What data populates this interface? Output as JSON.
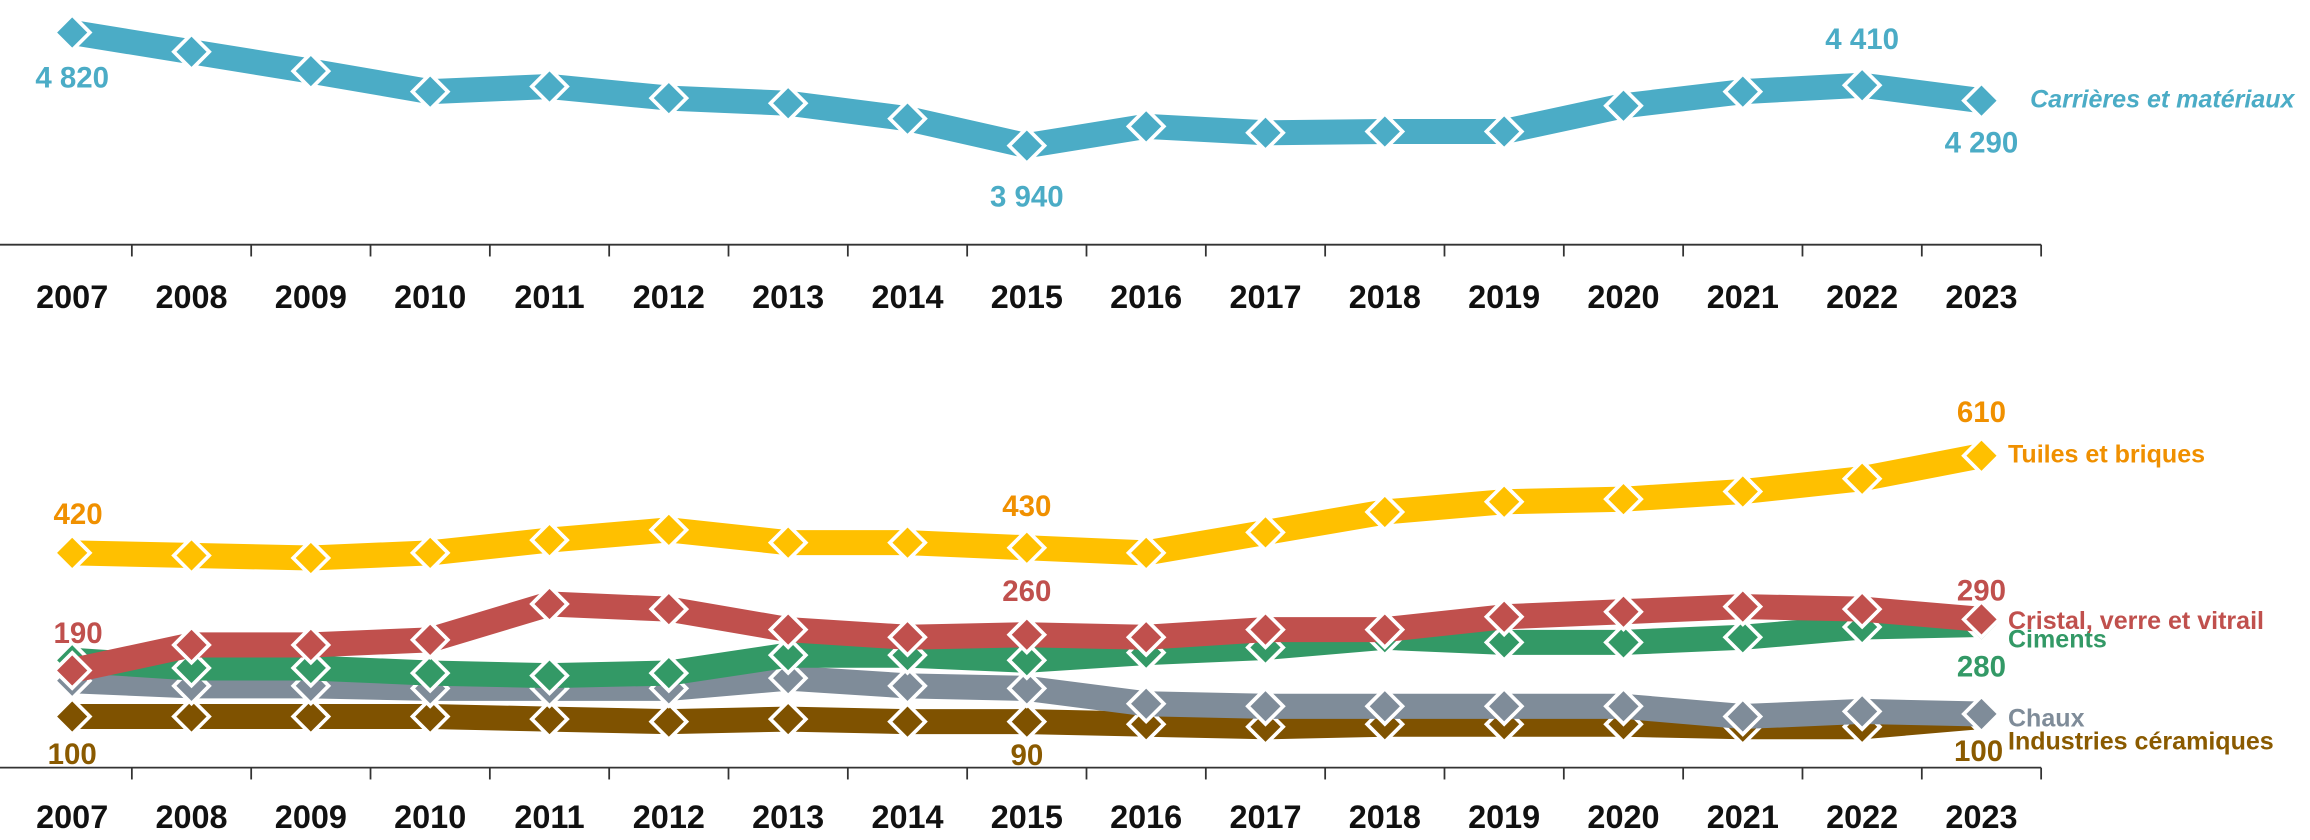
{
  "chart_data": [
    {
      "type": "line",
      "categories": [
        "2007",
        "2008",
        "2009",
        "2010",
        "2011",
        "2012",
        "2013",
        "2014",
        "2015",
        "2016",
        "2017",
        "2018",
        "2019",
        "2020",
        "2021",
        "2022",
        "2023"
      ],
      "ylim": [
        3800,
        4900
      ],
      "series": [
        {
          "name": "Carrières et matériaux",
          "color": "#4bacc6",
          "values": [
            4820,
            4670,
            4520,
            4360,
            4400,
            4310,
            4270,
            4150,
            3940,
            4090,
            4040,
            4050,
            4050,
            4250,
            4360,
            4410,
            4290
          ],
          "value_labels": [
            "4 820",
            null,
            null,
            null,
            null,
            null,
            null,
            null,
            "3 940",
            null,
            null,
            null,
            null,
            null,
            null,
            "4 410",
            "4 290"
          ]
        }
      ]
    },
    {
      "type": "line",
      "categories": [
        "2007",
        "2008",
        "2009",
        "2010",
        "2011",
        "2012",
        "2013",
        "2014",
        "2015",
        "2016",
        "2017",
        "2018",
        "2019",
        "2020",
        "2021",
        "2022",
        "2023"
      ],
      "ylim": [
        0,
        700
      ],
      "series": [
        {
          "name": "Industries céramiques",
          "color": "#7f5200",
          "values": [
            100,
            100,
            100,
            100,
            95,
            90,
            95,
            90,
            90,
            85,
            80,
            85,
            85,
            85,
            80,
            80,
            100
          ],
          "value_labels": [
            "100",
            null,
            null,
            null,
            null,
            null,
            null,
            null,
            "90",
            null,
            null,
            null,
            null,
            null,
            null,
            null,
            "100"
          ]
        },
        {
          "name": "Chaux",
          "color": "#7f8c99",
          "values": [
            170,
            160,
            160,
            155,
            155,
            155,
            175,
            160,
            155,
            125,
            120,
            120,
            120,
            120,
            100,
            110,
            105
          ]
        },
        {
          "name": "Ciments",
          "color": "#339966",
          "values": [
            210,
            195,
            195,
            185,
            180,
            185,
            220,
            220,
            210,
            225,
            235,
            255,
            245,
            245,
            255,
            275,
            280
          ],
          "value_labels": [
            null,
            null,
            null,
            null,
            null,
            null,
            null,
            null,
            null,
            null,
            null,
            null,
            null,
            null,
            null,
            null,
            "280"
          ]
        },
        {
          "name": "Cristal, verre et vitrail",
          "color": "#c0504d",
          "values": [
            190,
            240,
            240,
            250,
            320,
            310,
            270,
            255,
            260,
            255,
            270,
            270,
            295,
            305,
            315,
            310,
            290
          ],
          "value_labels": [
            "190",
            null,
            null,
            null,
            null,
            null,
            null,
            null,
            "260",
            null,
            null,
            null,
            null,
            null,
            null,
            null,
            "290"
          ]
        },
        {
          "name": "Tuiles et briques",
          "color": "#ffc000",
          "values": [
            420,
            415,
            410,
            420,
            445,
            465,
            440,
            440,
            430,
            420,
            460,
            500,
            520,
            525,
            540,
            565,
            610
          ],
          "value_labels": [
            "420",
            null,
            null,
            null,
            null,
            null,
            null,
            null,
            "430",
            null,
            null,
            null,
            null,
            null,
            null,
            null,
            "610"
          ]
        }
      ]
    }
  ]
}
